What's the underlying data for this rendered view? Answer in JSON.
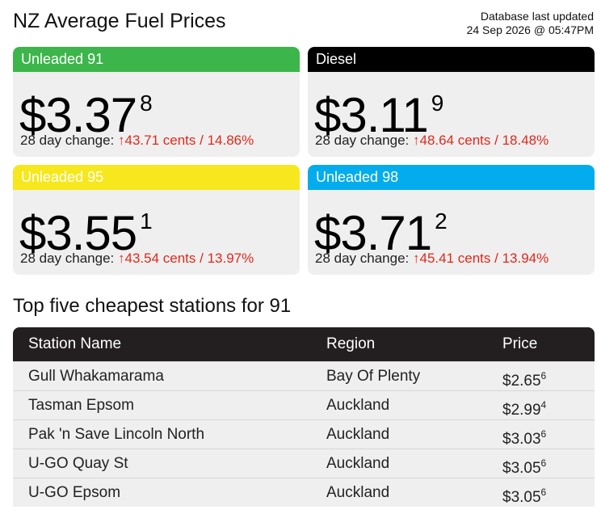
{
  "header": {
    "title": "NZ Average Fuel Prices",
    "updated_line1": "Database last updated",
    "updated_line2": "24 Sep 2026 @ 05:47PM"
  },
  "colors": {
    "unleaded91": "#3cb54a",
    "diesel": "#000000",
    "unleaded95": "#f6e81c",
    "unleaded98": "#03acec",
    "increase": "#e2281b"
  },
  "cards": [
    {
      "name": "Unleaded 91",
      "price_main": "$3.37",
      "price_fraction": "8",
      "change_label": "28 day change:",
      "arrow": "↑",
      "change_value": "43.71 cents / 14.86%"
    },
    {
      "name": "Diesel",
      "price_main": "$3.11",
      "price_fraction": "9",
      "change_label": "28 day change:",
      "arrow": "↑",
      "change_value": "48.64 cents / 18.48%"
    },
    {
      "name": "Unleaded 95",
      "price_main": "$3.55",
      "price_fraction": "1",
      "change_label": "28 day change:",
      "arrow": "↑",
      "change_value": "43.54 cents / 13.97%"
    },
    {
      "name": "Unleaded 98",
      "price_main": "$3.71",
      "price_fraction": "2",
      "change_label": "28 day change:",
      "arrow": "↑",
      "change_value": "45.41 cents / 13.94%"
    }
  ],
  "stations": {
    "title": "Top five cheapest stations for 91",
    "columns": [
      "Station Name",
      "Region",
      "Price"
    ],
    "rows": [
      {
        "name": "Gull Whakamarama",
        "region": "Bay Of Plenty",
        "price": "$2.65",
        "fraction": "6"
      },
      {
        "name": "Tasman Epsom",
        "region": "Auckland",
        "price": "$2.99",
        "fraction": "4"
      },
      {
        "name": "Pak 'n Save Lincoln North",
        "region": "Auckland",
        "price": "$3.03",
        "fraction": "6"
      },
      {
        "name": "U-GO Quay St",
        "region": "Auckland",
        "price": "$3.05",
        "fraction": "6"
      },
      {
        "name": "U-GO Epsom",
        "region": "Auckland",
        "price": "$3.05",
        "fraction": "6"
      }
    ]
  }
}
